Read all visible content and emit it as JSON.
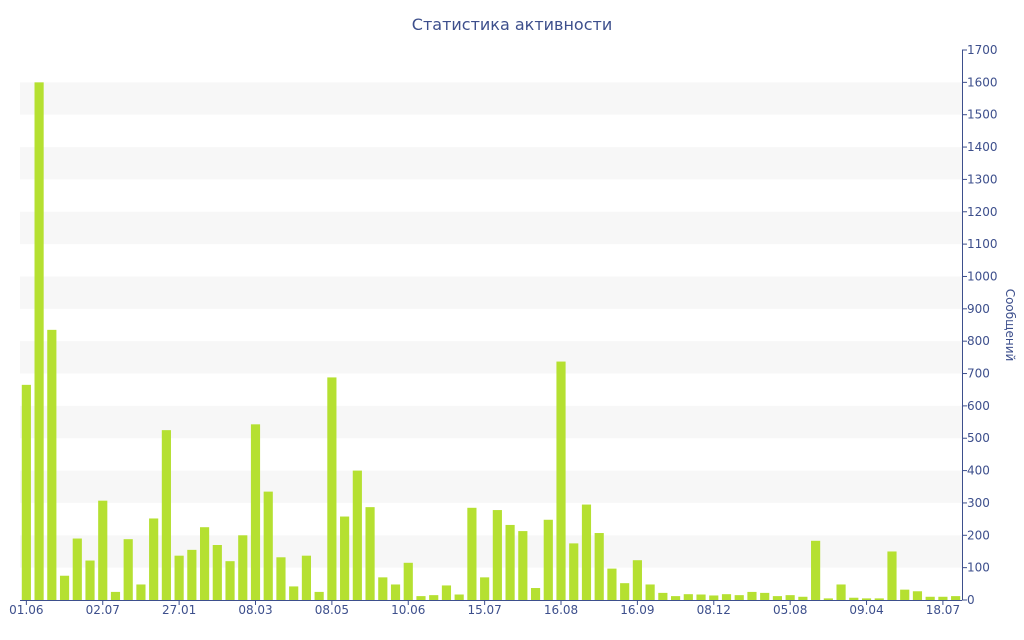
{
  "chart_data": {
    "type": "bar",
    "title": "Статистика активности",
    "xlabel": "",
    "ylabel": "Сообщений",
    "y_axis_side": "right",
    "ylim": [
      0,
      1700
    ],
    "y_ticks": [
      0,
      100,
      200,
      300,
      400,
      500,
      600,
      700,
      800,
      900,
      1000,
      1100,
      1200,
      1300,
      1400,
      1500,
      1600,
      1700
    ],
    "x_tick_labels": [
      {
        "label": "01.06",
        "index": 0
      },
      {
        "label": "02.07",
        "index": 6
      },
      {
        "label": "27.01",
        "index": 12
      },
      {
        "label": "08.03",
        "index": 18
      },
      {
        "label": "08.05",
        "index": 24
      },
      {
        "label": "10.06",
        "index": 30
      },
      {
        "label": "15.07",
        "index": 36
      },
      {
        "label": "16.08",
        "index": 42
      },
      {
        "label": "16.09",
        "index": 48
      },
      {
        "label": "08.12",
        "index": 54
      },
      {
        "label": "05.08",
        "index": 60
      },
      {
        "label": "09.04",
        "index": 66
      },
      {
        "label": "18.07",
        "index": 72
      }
    ],
    "values": [
      665,
      1600,
      835,
      75,
      190,
      122,
      307,
      25,
      188,
      48,
      252,
      525,
      137,
      155,
      225,
      170,
      120,
      200,
      543,
      335,
      132,
      42,
      137,
      25,
      688,
      258,
      400,
      287,
      70,
      48,
      115,
      12,
      15,
      45,
      17,
      285,
      70,
      278,
      232,
      213,
      37,
      248,
      737,
      175,
      295,
      207,
      97,
      52,
      123,
      48,
      22,
      12,
      18,
      17,
      14,
      18,
      15,
      25,
      22,
      12,
      15,
      10,
      183,
      5,
      48,
      7,
      5,
      5,
      150,
      32,
      27,
      10,
      10,
      12
    ],
    "bar_color": "#b5e031",
    "band_color": "#f7f7f7",
    "axis_color": "#3d4f8c",
    "grid_bands": true,
    "legend": false
  }
}
